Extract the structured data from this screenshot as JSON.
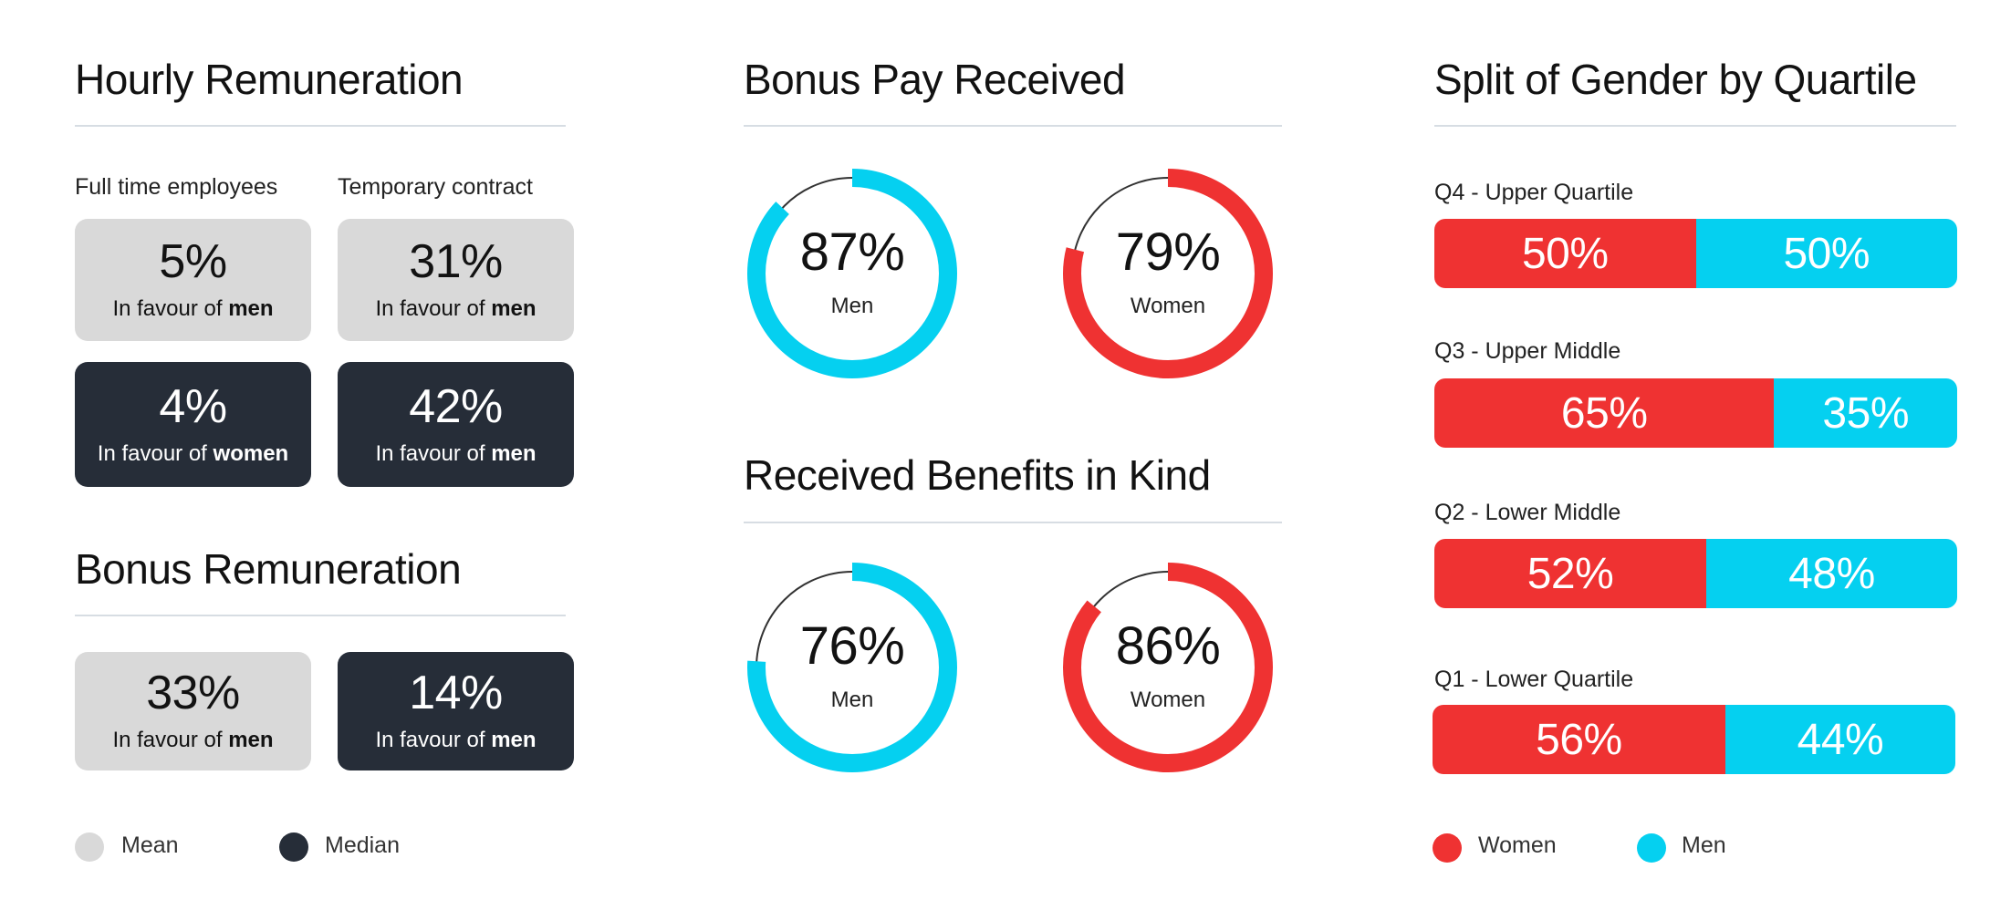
{
  "colors": {
    "women": "#ef3232",
    "men": "#05d0f0",
    "mean": "#d9d9d9",
    "median": "#262d38",
    "ring_track": "#333333"
  },
  "hourly": {
    "title": "Hourly Remuneration",
    "col1": "Full time employees",
    "col2": "Temporary  contract",
    "cards": [
      {
        "value": "5%",
        "prefix": "In favour of ",
        "group": "men"
      },
      {
        "value": "31%",
        "prefix": "In favour of ",
        "group": "men"
      },
      {
        "value": "4%",
        "prefix": "In favour of ",
        "group": "women"
      },
      {
        "value": "42%",
        "prefix": "In favour of ",
        "group": "men"
      }
    ]
  },
  "bonus_rem": {
    "title": "Bonus Remuneration",
    "cards": [
      {
        "value": "33%",
        "prefix": "In favour of ",
        "group": "men"
      },
      {
        "value": "14%",
        "prefix": "In favour of ",
        "group": "men"
      }
    ]
  },
  "legend_left": {
    "mean": "Mean",
    "median": "Median"
  },
  "bonus_pay": {
    "title": "Bonus Pay Received"
  },
  "benefits": {
    "title": "Received Benefits in Kind"
  },
  "quartiles": {
    "title": "Split of Gender by Quartile"
  },
  "legend_right": {
    "women": "Women",
    "men": "Men"
  },
  "chart_data": [
    {
      "type": "pie",
      "title": "Bonus Pay Received",
      "categories": [
        "Men",
        "Women"
      ],
      "series": [
        {
          "name": "Men",
          "label": "Men",
          "value": 87,
          "display": "87%",
          "color": "#05d0f0"
        },
        {
          "name": "Women",
          "label": "Women",
          "value": 79,
          "display": "79%",
          "color": "#ef3232"
        }
      ]
    },
    {
      "type": "pie",
      "title": "Received Benefits in Kind",
      "categories": [
        "Men",
        "Women"
      ],
      "series": [
        {
          "name": "Men",
          "label": "Men",
          "value": 76,
          "display": "76%",
          "color": "#05d0f0"
        },
        {
          "name": "Women",
          "label": "Women",
          "value": 86,
          "display": "86%",
          "color": "#ef3232"
        }
      ]
    },
    {
      "type": "bar",
      "title": "Split of Gender by Quartile",
      "categories": [
        "Q4 - Upper Quartile",
        "Q3 - Upper Middle",
        "Q2 - Lower Middle",
        "Q1 - Lower Quartile"
      ],
      "series": [
        {
          "name": "Women",
          "values": [
            50,
            65,
            52,
            56
          ],
          "labels": [
            "50%",
            "65%",
            "52%",
            "56%"
          ]
        },
        {
          "name": "Men",
          "values": [
            50,
            35,
            48,
            44
          ],
          "labels": [
            "50%",
            "35%",
            "48%",
            "44%"
          ]
        }
      ],
      "legend": "bottom-left"
    }
  ]
}
